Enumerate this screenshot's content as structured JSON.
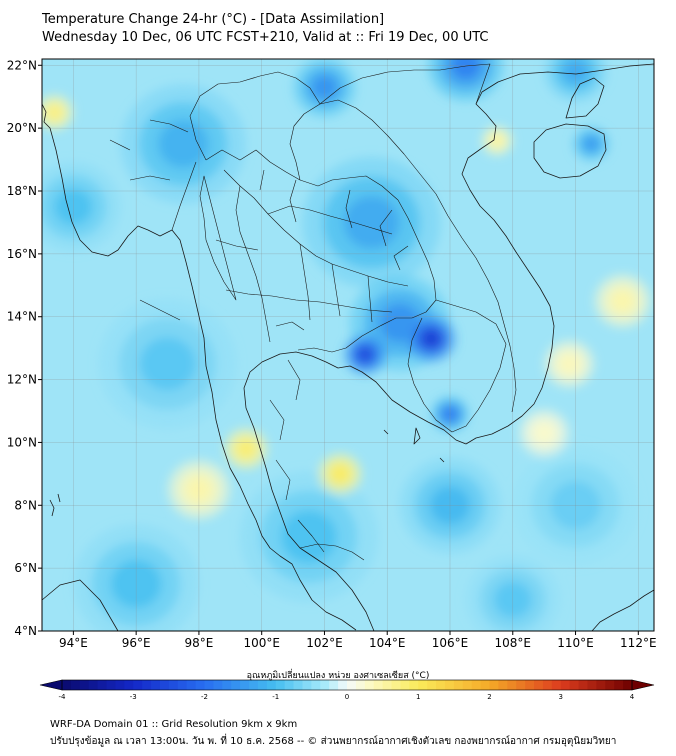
{
  "header": {
    "title": "Temperature Change 24-hr (°C) - [Data Assimilation]",
    "subtitle": "Wednesday 10 Dec, 06 UTC FCST+210, Valid at :: Fri 19 Dec, 00 UTC"
  },
  "map": {
    "lat_labels": [
      "22°N",
      "20°N",
      "18°N",
      "16°N",
      "14°N",
      "12°N",
      "10°N",
      "8°N",
      "6°N",
      "4°N"
    ],
    "lon_labels": [
      "94°E",
      "96°E",
      "98°E",
      "100°E",
      "102°E",
      "104°E",
      "106°E",
      "108°E",
      "110°E",
      "112°E"
    ],
    "lat_values": [
      22,
      20,
      18,
      16,
      14,
      12,
      10,
      8,
      6,
      4
    ],
    "lon_values": [
      94,
      96,
      98,
      100,
      102,
      104,
      106,
      108,
      110,
      112
    ],
    "lon_range": [
      93.0,
      112.5
    ],
    "lat_range": [
      4.0,
      22.2
    ],
    "blobs": [
      {
        "lon": 103.3,
        "lat": 12.8,
        "v": -2.6,
        "s": 0.7
      },
      {
        "lon": 105.4,
        "lat": 13.3,
        "v": -2.8,
        "s": 0.8
      },
      {
        "lon": 104.4,
        "lat": 13.8,
        "v": -1.6,
        "s": 1.6
      },
      {
        "lon": 106.0,
        "lat": 10.9,
        "v": -1.9,
        "s": 0.6
      },
      {
        "lon": 103.5,
        "lat": 17.0,
        "v": -1.3,
        "s": 2.2
      },
      {
        "lon": 102.0,
        "lat": 21.3,
        "v": -1.6,
        "s": 1.0
      },
      {
        "lon": 106.5,
        "lat": 22.0,
        "v": -1.8,
        "s": 1.2
      },
      {
        "lon": 110.0,
        "lat": 21.8,
        "v": -1.3,
        "s": 1.0
      },
      {
        "lon": 110.5,
        "lat": 19.5,
        "v": -1.5,
        "s": 0.6
      },
      {
        "lon": 97.5,
        "lat": 19.5,
        "v": -1.2,
        "s": 2.0
      },
      {
        "lon": 94.0,
        "lat": 17.5,
        "v": -1.0,
        "s": 1.5
      },
      {
        "lon": 97.0,
        "lat": 12.5,
        "v": -0.9,
        "s": 2.2
      },
      {
        "lon": 96.0,
        "lat": 5.5,
        "v": -1.0,
        "s": 2.0
      },
      {
        "lon": 101.5,
        "lat": 7.0,
        "v": -1.0,
        "s": 2.2
      },
      {
        "lon": 106.0,
        "lat": 8.0,
        "v": -1.1,
        "s": 1.6
      },
      {
        "lon": 110.0,
        "lat": 8.0,
        "v": -0.8,
        "s": 2.0
      },
      {
        "lon": 108.0,
        "lat": 5.0,
        "v": -0.9,
        "s": 1.5
      },
      {
        "lon": 99.5,
        "lat": 9.8,
        "v": 0.9,
        "s": 0.7
      },
      {
        "lon": 102.5,
        "lat": 9.0,
        "v": 1.0,
        "s": 0.7
      },
      {
        "lon": 98.0,
        "lat": 8.5,
        "v": 0.5,
        "s": 1.0
      },
      {
        "lon": 107.5,
        "lat": 19.6,
        "v": 0.6,
        "s": 0.5
      },
      {
        "lon": 111.5,
        "lat": 14.5,
        "v": 0.5,
        "s": 0.9
      },
      {
        "lon": 109.8,
        "lat": 12.5,
        "v": 0.4,
        "s": 0.8
      },
      {
        "lon": 93.4,
        "lat": 20.5,
        "v": 0.8,
        "s": 0.6
      },
      {
        "lon": 109.0,
        "lat": 10.3,
        "v": 0.3,
        "s": 0.8
      }
    ]
  },
  "colorbar": {
    "label": "อุณหภูมิเปลี่ยนแปลง หน่วย องศาเซลเซียส (°C)",
    "ticks": [
      "-4",
      "-3",
      "-2",
      "-1",
      "0",
      "1",
      "2",
      "3",
      "4"
    ],
    "tick_values": [
      -4,
      -3,
      -2,
      -1,
      0,
      1,
      2,
      3,
      4
    ],
    "range": [
      -4,
      4
    ]
  },
  "footer": {
    "line1": "WRF-DA Domain 01 :: Grid Resolution 9km x 9km",
    "line2": "ปรับปรุงข้อมูล ณ เวลา 13:00น. วัน พ. ที่ 10 ธ.ค. 2568 -- © ส่วนพยากรณ์อากาศเชิงตัวเลข กองพยากรณ์อากาศ กรมอุตุนิยมวิทยา"
  }
}
